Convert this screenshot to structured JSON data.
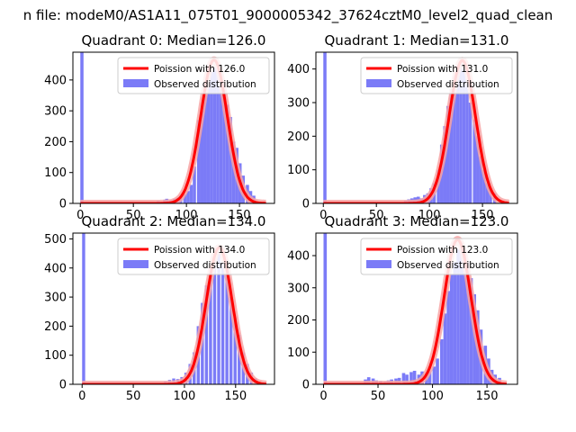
{
  "figure": {
    "suptitle": "n file: modeM0/AS1A11_075T01_9000005342_37624cztM0_level2_quad_clean"
  },
  "colors": {
    "histogram": "#7b7bf7",
    "poisson": "#ff0000",
    "poisson_glow": "#f7a5a5",
    "axes": "#000000"
  },
  "chart_data": [
    {
      "type": "bar",
      "title": "Quadrant 0: Median=126.0",
      "median": 126.0,
      "xlim": [
        -7,
        183
      ],
      "ylim": [
        0,
        490
      ],
      "xticks": [
        0,
        50,
        100,
        150
      ],
      "yticks": [
        0,
        100,
        200,
        300,
        400
      ],
      "legend": {
        "position": "top-right",
        "entries": [
          "Poission with 126.0",
          "Observed distribution"
        ]
      },
      "series": [
        {
          "name": "Poission with 126.0",
          "kind": "line",
          "x_range": [
            0,
            175
          ],
          "mean": 126.0,
          "sd": 12.6,
          "peak": 465
        },
        {
          "name": "Observed distribution",
          "kind": "histogram",
          "bins": [
            [
              0,
              490
            ],
            [
              72,
              8
            ],
            [
              75,
              5
            ],
            [
              78,
              12
            ],
            [
              80,
              15
            ],
            [
              83,
              10
            ],
            [
              87,
              15
            ],
            [
              90,
              18
            ],
            [
              93,
              25
            ],
            [
              97,
              30
            ],
            [
              100,
              40
            ],
            [
              103,
              60
            ],
            [
              106,
              120
            ],
            [
              110,
              270
            ],
            [
              113,
              300
            ],
            [
              116,
              350
            ],
            [
              119,
              390
            ],
            [
              122,
              430
            ],
            [
              125,
              440
            ],
            [
              128,
              440
            ],
            [
              131,
              420
            ],
            [
              134,
              380
            ],
            [
              137,
              320
            ],
            [
              140,
              280
            ],
            [
              143,
              200
            ],
            [
              146,
              180
            ],
            [
              149,
              130
            ],
            [
              152,
              90
            ],
            [
              156,
              60
            ],
            [
              159,
              40
            ],
            [
              162,
              25
            ]
          ]
        }
      ]
    },
    {
      "type": "bar",
      "title": "Quadrant 1: Median=131.0",
      "median": 131.0,
      "xlim": [
        -7,
        183
      ],
      "ylim": [
        0,
        450
      ],
      "xticks": [
        0,
        50,
        100,
        150
      ],
      "yticks": [
        0,
        100,
        200,
        300,
        400
      ],
      "legend": {
        "position": "top-right",
        "entries": [
          "Poission with 131.0",
          "Observed distribution"
        ]
      },
      "series": [
        {
          "name": "Poission with 131.0",
          "kind": "line",
          "x_range": [
            0,
            175
          ],
          "mean": 131.0,
          "sd": 12.5,
          "peak": 425
        },
        {
          "name": "Observed distribution",
          "kind": "histogram",
          "bins": [
            [
              0,
              450
            ],
            [
              76,
              8
            ],
            [
              79,
              12
            ],
            [
              82,
              15
            ],
            [
              85,
              18
            ],
            [
              88,
              20
            ],
            [
              91,
              15
            ],
            [
              94,
              25
            ],
            [
              97,
              30
            ],
            [
              100,
              45
            ],
            [
              103,
              60
            ],
            [
              107,
              100
            ],
            [
              110,
              175
            ],
            [
              113,
              230
            ],
            [
              116,
              290
            ],
            [
              119,
              340
            ],
            [
              122,
              380
            ],
            [
              125,
              410
            ],
            [
              128,
              420
            ],
            [
              131,
              400
            ],
            [
              134,
              370
            ],
            [
              137,
              300
            ],
            [
              141,
              250
            ],
            [
              144,
              200
            ],
            [
              147,
              140
            ],
            [
              150,
              100
            ],
            [
              153,
              60
            ],
            [
              156,
              45
            ],
            [
              160,
              30
            ]
          ]
        }
      ]
    },
    {
      "type": "bar",
      "title": "Quadrant 2: Median=134.0",
      "median": 134.0,
      "xlim": [
        -9,
        188
      ],
      "ylim": [
        0,
        520
      ],
      "xticks": [
        0,
        50,
        100,
        150
      ],
      "yticks": [
        0,
        100,
        200,
        300,
        400,
        500
      ],
      "legend": {
        "position": "top-right",
        "entries": [
          "Poission with 134.0",
          "Observed distribution"
        ]
      },
      "series": [
        {
          "name": "Poission with 134.0",
          "kind": "line",
          "x_range": [
            0,
            180
          ],
          "mean": 134.0,
          "sd": 12.7,
          "peak": 470
        },
        {
          "name": "Observed distribution",
          "kind": "histogram",
          "bins": [
            [
              0,
              520
            ],
            [
              80,
              10
            ],
            [
              84,
              15
            ],
            [
              88,
              20
            ],
            [
              92,
              18
            ],
            [
              96,
              25
            ],
            [
              100,
              40
            ],
            [
              104,
              70
            ],
            [
              108,
              110
            ],
            [
              112,
              200
            ],
            [
              116,
              280
            ],
            [
              120,
              340
            ],
            [
              124,
              400
            ],
            [
              128,
              430
            ],
            [
              132,
              450
            ],
            [
              136,
              420
            ],
            [
              140,
              380
            ],
            [
              144,
              300
            ],
            [
              148,
              230
            ],
            [
              152,
              170
            ],
            [
              156,
              110
            ],
            [
              160,
              70
            ],
            [
              164,
              40
            ],
            [
              168,
              20
            ]
          ]
        }
      ]
    },
    {
      "type": "bar",
      "title": "Quadrant 3: Median=123.0",
      "median": 123.0,
      "xlim": [
        -7,
        178
      ],
      "ylim": [
        0,
        470
      ],
      "xticks": [
        0,
        50,
        100,
        150
      ],
      "yticks": [
        0,
        100,
        200,
        300,
        400
      ],
      "legend": {
        "position": "top-right",
        "entries": [
          "Poission with 123.0",
          "Observed distribution"
        ]
      },
      "series": [
        {
          "name": "Poission with 123.0",
          "kind": "line",
          "x_range": [
            0,
            168
          ],
          "mean": 123.0,
          "sd": 12.3,
          "peak": 450
        },
        {
          "name": "Observed distribution",
          "kind": "histogram",
          "bins": [
            [
              0,
              470
            ],
            [
              37,
              15
            ],
            [
              40,
              22
            ],
            [
              44,
              18
            ],
            [
              47,
              12
            ],
            [
              51,
              10
            ],
            [
              55,
              8
            ],
            [
              58,
              12
            ],
            [
              61,
              15
            ],
            [
              65,
              18
            ],
            [
              68,
              20
            ],
            [
              72,
              35
            ],
            [
              75,
              30
            ],
            [
              79,
              38
            ],
            [
              82,
              42
            ],
            [
              86,
              30
            ],
            [
              89,
              40
            ],
            [
              93,
              35
            ],
            [
              96,
              40
            ],
            [
              100,
              55
            ],
            [
              103,
              80
            ],
            [
              107,
              140
            ],
            [
              110,
              220
            ],
            [
              113,
              290
            ],
            [
              116,
              340
            ],
            [
              119,
              380
            ],
            [
              122,
              420
            ],
            [
              125,
              430
            ],
            [
              128,
              410
            ],
            [
              131,
              380
            ],
            [
              134,
              330
            ],
            [
              137,
              280
            ],
            [
              140,
              230
            ],
            [
              143,
              170
            ],
            [
              147,
              120
            ],
            [
              150,
              80
            ],
            [
              153,
              45
            ],
            [
              156,
              30
            ],
            [
              160,
              20
            ]
          ]
        }
      ]
    }
  ]
}
